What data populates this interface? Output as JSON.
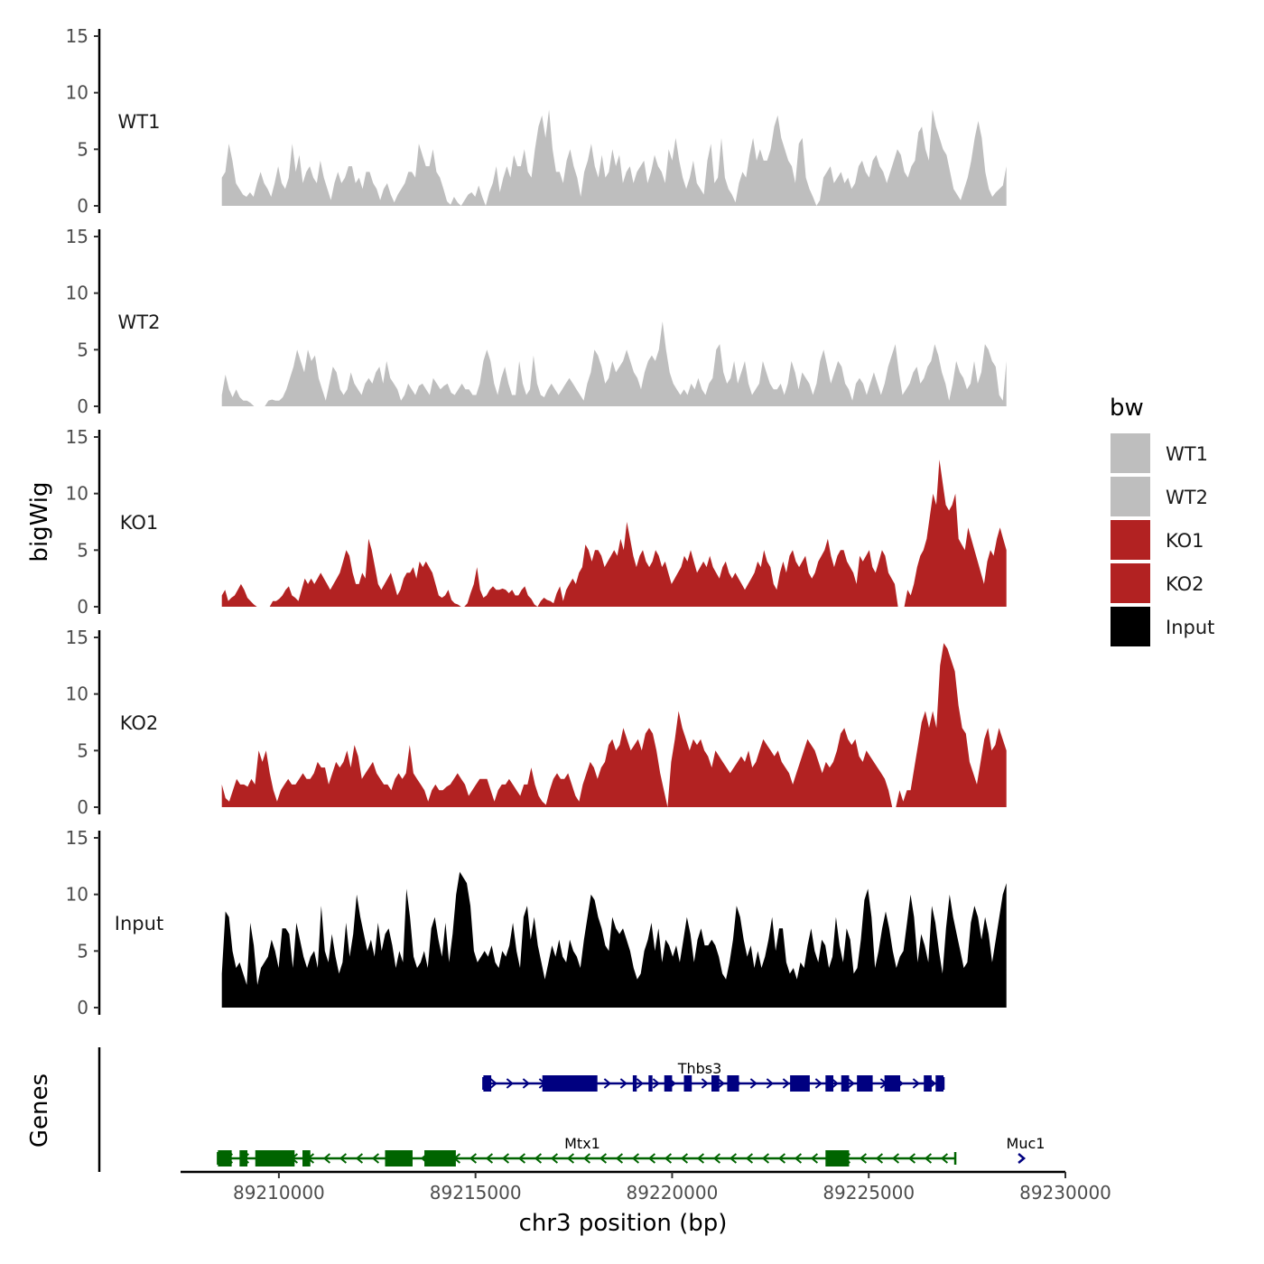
{
  "chart_data": {
    "type": "area",
    "ylabel": "bigWig",
    "xlabel": "chr3 position (bp)",
    "xlim": [
      89207500,
      89230000
    ],
    "ylim": [
      0,
      15
    ],
    "y_ticks": [
      0,
      5,
      10,
      15
    ],
    "x_ticks": [
      89210000,
      89215000,
      89220000,
      89225000,
      89230000
    ],
    "x_tick_labels": [
      "89210000",
      "89215000",
      "89220000",
      "89225000",
      "89230000"
    ],
    "genes_panel_label": "Genes",
    "legend": {
      "title": "bw",
      "placement": "right",
      "entries": [
        {
          "label": "WT1",
          "color": "#bebebe"
        },
        {
          "label": "WT2",
          "color": "#bebebe"
        },
        {
          "label": "KO1",
          "color": "#b22222"
        },
        {
          "label": "KO2",
          "color": "#b22222"
        },
        {
          "label": "Input",
          "color": "#000000"
        }
      ]
    },
    "series": [
      {
        "name": "WT1",
        "color": "#bebebe",
        "x_start": 89208550,
        "x_end": 89228500,
        "values": [
          2.5,
          3,
          5.5,
          4,
          2,
          1.5,
          1,
          0.8,
          1.2,
          0.8,
          2,
          3,
          2,
          1.5,
          0.8,
          2,
          3.5,
          2,
          1.5,
          2.5,
          5.5,
          3,
          4.5,
          2,
          3,
          3.5,
          2.5,
          2,
          4,
          2.5,
          1.5,
          0.5,
          2,
          3,
          2,
          2.5,
          3.5,
          3.5,
          2,
          2.5,
          1.5,
          3,
          3,
          2,
          1.5,
          0.5,
          1.5,
          2,
          1,
          0.3,
          1,
          1.5,
          2,
          3,
          3,
          2.5,
          5.5,
          4.5,
          3.5,
          3.5,
          5,
          3,
          2.5,
          1.5,
          0.4,
          0.1,
          0.8,
          0.3,
          0,
          0.5,
          1,
          1.2,
          0.8,
          1.8,
          0.8,
          0,
          1.2,
          2,
          3.5,
          1.2,
          2.5,
          3.5,
          2.5,
          4.5,
          3.5,
          3.5,
          5,
          3,
          2.5,
          5,
          7,
          8,
          6,
          8.5,
          5,
          3,
          3,
          2,
          4,
          5,
          3.5,
          2.5,
          0.8,
          3,
          4,
          5.5,
          3.5,
          2.5,
          4.5,
          2.5,
          3,
          5,
          3.5,
          4.5,
          2,
          3,
          3.5,
          2,
          3,
          3.5,
          4,
          2,
          3,
          4.5,
          3.5,
          3,
          2,
          5,
          4,
          6,
          4,
          2.5,
          1.5,
          2.5,
          4,
          2,
          1.5,
          1,
          4,
          5.5,
          2,
          2.5,
          6,
          2.5,
          1.5,
          1,
          0.3,
          2,
          3,
          2.5,
          4.5,
          6,
          4,
          5,
          4,
          4,
          5,
          7,
          8,
          6,
          5,
          4,
          3.5,
          2,
          5.5,
          6,
          2.5,
          1.5,
          0.8,
          0,
          0.5,
          2.5,
          3,
          3.5,
          2,
          2.5,
          3,
          2,
          2.5,
          1.5,
          2,
          3.5,
          4,
          3,
          2.5,
          4,
          4.5,
          3.5,
          3,
          2,
          3,
          4,
          5,
          4.5,
          3,
          2.5,
          3.5,
          4,
          6.5,
          7,
          5,
          4,
          8.5,
          7,
          6,
          5,
          4.5,
          3,
          1.5,
          1,
          0.5,
          1.5,
          2.5,
          4,
          6,
          7.5,
          6,
          3,
          1.5,
          0.8,
          1.2,
          1.5,
          1.8,
          3.5
        ]
      },
      {
        "name": "WT2",
        "color": "#bebebe",
        "x_start": 89208550,
        "x_end": 89228500,
        "values": [
          1,
          2.8,
          1.5,
          0.8,
          1.5,
          0.8,
          0.5,
          0.5,
          0.3,
          0,
          0,
          0,
          0,
          0.5,
          0.6,
          0.5,
          0.5,
          0.8,
          1.5,
          2.5,
          3.5,
          5,
          4,
          3,
          5,
          4,
          4.5,
          2.5,
          1.5,
          0.5,
          2,
          3.5,
          3,
          1.5,
          1,
          1.5,
          3,
          2,
          1.5,
          1,
          2,
          2.5,
          2,
          3,
          3.5,
          2,
          4,
          2.5,
          2,
          1.5,
          0.5,
          1,
          2,
          1.5,
          1,
          1.8,
          2,
          1.5,
          1,
          2.5,
          2,
          1.5,
          1.8,
          2,
          1.2,
          1,
          1.5,
          2,
          1.5,
          1.5,
          1,
          1,
          2,
          4,
          5,
          4,
          2,
          1,
          2.5,
          3.5,
          2,
          1,
          1,
          4,
          2,
          1,
          1.5,
          4.5,
          2,
          1,
          0.8,
          1.5,
          2,
          1.5,
          1,
          1.5,
          2,
          2.5,
          2,
          1.5,
          1,
          0.5,
          2,
          3,
          5,
          4.5,
          3.5,
          2,
          2.5,
          4,
          3,
          3.5,
          4,
          5,
          4,
          3,
          2.5,
          1.5,
          3,
          4,
          4.5,
          4,
          5,
          7.5,
          5,
          3,
          2,
          1.5,
          1,
          1.5,
          1,
          2,
          1.5,
          2.5,
          1.5,
          1,
          2,
          2.5,
          5,
          5.5,
          3,
          2,
          2.5,
          4,
          2,
          3,
          4,
          2,
          1,
          1.5,
          2,
          4,
          3,
          2,
          1.5,
          1.5,
          2,
          1,
          2,
          4,
          3,
          1.5,
          3,
          2.5,
          2,
          1,
          2,
          4,
          5,
          3.5,
          2,
          3,
          4,
          3.5,
          2,
          1.5,
          0.5,
          2,
          2.5,
          2,
          1,
          2,
          3,
          2,
          1,
          2,
          3.5,
          4.5,
          5.5,
          3,
          1,
          1.5,
          2,
          3,
          3.5,
          2,
          2.5,
          3.5,
          4,
          5.5,
          4.5,
          3,
          2,
          0.5,
          2,
          4,
          3,
          2.5,
          1.5,
          2,
          4,
          2,
          3,
          5.5,
          5,
          4,
          3.5,
          1,
          0.5,
          4
        ]
      },
      {
        "name": "KO1",
        "color": "#b22222",
        "x_start": 89208550,
        "x_end": 89228500,
        "values": [
          1,
          1.5,
          0.5,
          0.8,
          1,
          1.5,
          2,
          1.5,
          0.8,
          0.5,
          0.2,
          0,
          0,
          0,
          0,
          0,
          0.5,
          0.5,
          0.7,
          1,
          1.5,
          1.8,
          1,
          0.8,
          0.5,
          1.5,
          2.5,
          2,
          2.5,
          2,
          2.5,
          3,
          2.5,
          2,
          1.5,
          2,
          2.5,
          3,
          4,
          5,
          4.5,
          3,
          2,
          2,
          3,
          2.5,
          6,
          5,
          3.5,
          2,
          1.5,
          2,
          2.5,
          3,
          2,
          1,
          1.5,
          2.5,
          3,
          3,
          3.5,
          2.5,
          4,
          3.5,
          4,
          3.5,
          3,
          2,
          1,
          0.8,
          1,
          1.5,
          0.6,
          0.3,
          0.2,
          0,
          0,
          0.3,
          1.2,
          2,
          3.5,
          1.5,
          0.8,
          1,
          1.5,
          1.8,
          1.5,
          1.5,
          1.6,
          1.5,
          1.2,
          1.5,
          1,
          1,
          1.5,
          1.8,
          1,
          0.7,
          0.2,
          0,
          0.5,
          0.8,
          0.6,
          0.5,
          0.3,
          1.2,
          1.8,
          0.5,
          1.5,
          2,
          2.5,
          2,
          3,
          3.5,
          5.5,
          5,
          4,
          5,
          5,
          4.5,
          3.5,
          4,
          4.5,
          5,
          4.5,
          6,
          5,
          7.5,
          6,
          4.5,
          3.5,
          4.5,
          5,
          4,
          3.5,
          4,
          5,
          4.5,
          3.5,
          4,
          3,
          2,
          2.5,
          3,
          3.5,
          4.5,
          4,
          5,
          4,
          3,
          3.5,
          4,
          3.5,
          4.5,
          3.5,
          3,
          2.5,
          3.5,
          4,
          3,
          2.5,
          3,
          2.5,
          2,
          1.5,
          2,
          2.5,
          3,
          4,
          3.5,
          5,
          4,
          3.5,
          2,
          1.5,
          3,
          4,
          3,
          4.5,
          5,
          4,
          3.5,
          4,
          4.5,
          3,
          2.5,
          3,
          4,
          4.5,
          5,
          6,
          4.5,
          3.5,
          4.5,
          5,
          5,
          4,
          3.5,
          3,
          2,
          4.5,
          4,
          4.5,
          5,
          3.5,
          3,
          4,
          5,
          4.5,
          3,
          2.5,
          2,
          0,
          0,
          0,
          1.5,
          1,
          2,
          3.5,
          4.5,
          5,
          6,
          8,
          10,
          9,
          13,
          11,
          9,
          8.5,
          9,
          10,
          6,
          5.5,
          5,
          7,
          6,
          5,
          4,
          3,
          2,
          4,
          5,
          4.5,
          6,
          7,
          6,
          5
        ]
      },
      {
        "name": "KO2",
        "color": "#b22222",
        "x_start": 89208550,
        "x_end": 89228500,
        "values": [
          2,
          0.8,
          0.5,
          1.5,
          2.5,
          2,
          2,
          1.8,
          2.5,
          2,
          5,
          4,
          5,
          3,
          1.5,
          0.5,
          1.5,
          2,
          2.5,
          2,
          2,
          2.5,
          3,
          2.5,
          2.5,
          3,
          4,
          3.5,
          3.5,
          2,
          3,
          4,
          3.5,
          4,
          5,
          3.5,
          5.5,
          4.5,
          2.5,
          3,
          3.5,
          4,
          3,
          2.5,
          2,
          2,
          1.5,
          2.5,
          3,
          2.5,
          3,
          5.5,
          3,
          2.5,
          2,
          1.5,
          0.5,
          1.5,
          2,
          1.5,
          1.5,
          1.8,
          2,
          2.5,
          3,
          2.5,
          2,
          1,
          1.5,
          2,
          2.5,
          2.5,
          2.5,
          1.5,
          0.5,
          1.5,
          2,
          2,
          2.5,
          2,
          1.5,
          1,
          2,
          2,
          3.5,
          2,
          1,
          0.5,
          0.2,
          1.5,
          2.5,
          3,
          2.5,
          2.5,
          3,
          2,
          1,
          0.5,
          2,
          3,
          4,
          3.5,
          2.5,
          3.5,
          4,
          5.5,
          6,
          5,
          5.5,
          7,
          6,
          5,
          5.5,
          6,
          5,
          6.5,
          7,
          6.5,
          5,
          3,
          1.5,
          0,
          4,
          6,
          8.5,
          7,
          6,
          5,
          6,
          5.5,
          6,
          5,
          4.5,
          3.5,
          5,
          4.5,
          4,
          3.5,
          3,
          3.5,
          4,
          4.5,
          4,
          5,
          3.5,
          4,
          5,
          6,
          5.5,
          5,
          4.5,
          5,
          4,
          3.5,
          3,
          2,
          3,
          4,
          5,
          6,
          5.5,
          5,
          4,
          3,
          4,
          3.5,
          4,
          5,
          6.5,
          7,
          6,
          5.5,
          6,
          4.5,
          4,
          5,
          4.5,
          4,
          3.5,
          3,
          2.5,
          1.5,
          0,
          0,
          1.5,
          0.5,
          1.5,
          1.5,
          3.5,
          5.5,
          7.5,
          8.5,
          7,
          8.5,
          7,
          12.5,
          14.5,
          14,
          13,
          12,
          9,
          7,
          6.5,
          4,
          3,
          2,
          4,
          6,
          7,
          5,
          5.5,
          7,
          6,
          5
        ]
      },
      {
        "name": "Input",
        "color": "#000000",
        "x_start": 89208550,
        "x_end": 89228500,
        "values": [
          3,
          8.5,
          8,
          5,
          3.5,
          4,
          3,
          2,
          7.5,
          5.5,
          2,
          3.5,
          4,
          4.5,
          6,
          5,
          3.5,
          7,
          7,
          6.5,
          3.5,
          7.5,
          6,
          4.5,
          3.5,
          4.5,
          5,
          3.5,
          9,
          5,
          4,
          6.5,
          4.5,
          3,
          4,
          7.5,
          4.5,
          6.5,
          10,
          8,
          6.5,
          5,
          6,
          4.5,
          7.5,
          5,
          6.5,
          7,
          5.5,
          3.5,
          5,
          4,
          10.5,
          8,
          4.5,
          3.5,
          4,
          5,
          3.5,
          7,
          8,
          6,
          4.5,
          7.5,
          4,
          6.5,
          10,
          12,
          11.5,
          11,
          9,
          5,
          4,
          4.5,
          5,
          4.5,
          5.5,
          4,
          3.5,
          5,
          4.5,
          5.5,
          7.5,
          5,
          3.5,
          8,
          9,
          6,
          8,
          5.5,
          4,
          2.5,
          4,
          5.5,
          4.5,
          6,
          4.5,
          4,
          6,
          5,
          4.5,
          3.5,
          6,
          8,
          10,
          9.5,
          8,
          7,
          5.5,
          5,
          8,
          7,
          6.5,
          7,
          6,
          5,
          3.5,
          2.5,
          3,
          5,
          6,
          7.5,
          5,
          7,
          4,
          6,
          5.5,
          4.5,
          5.5,
          4,
          6,
          8,
          6.5,
          4,
          6,
          7,
          5.5,
          5.5,
          6,
          5.5,
          4.5,
          3,
          2.5,
          4,
          6,
          9,
          8,
          6,
          4.5,
          5.5,
          3.5,
          5,
          3.5,
          4.5,
          6,
          8,
          5,
          7,
          7,
          4,
          3,
          3.5,
          2.5,
          4,
          3.5,
          5.5,
          7,
          5,
          4,
          6,
          5.5,
          3.5,
          4.5,
          8,
          5.5,
          4,
          7,
          6,
          3,
          3.5,
          6,
          9.5,
          10.5,
          8,
          3.5,
          5,
          7,
          8.5,
          7,
          5,
          3.5,
          4.5,
          5,
          7.5,
          10,
          8,
          4,
          6.5,
          5.5,
          4,
          9,
          7.5,
          5,
          3,
          7,
          10,
          8,
          6.5,
          5,
          3.5,
          4,
          7.5,
          9,
          8,
          6,
          8,
          6.5,
          4,
          6,
          8,
          10,
          11
        ]
      }
    ],
    "genes": [
      {
        "name": "Thbs3",
        "strand": "+",
        "color": "#000080",
        "start": 89215200,
        "end": 89226900,
        "exons": [
          [
            89215200,
            89215400
          ],
          [
            89216700,
            89218100
          ],
          [
            89219000,
            89219100
          ],
          [
            89219400,
            89219500
          ],
          [
            89219800,
            89220000
          ],
          [
            89220300,
            89220500
          ],
          [
            89221000,
            89221200
          ],
          [
            89221400,
            89221700
          ],
          [
            89223000,
            89223500
          ],
          [
            89223900,
            89224100
          ],
          [
            89224300,
            89224500
          ],
          [
            89224700,
            89225100
          ],
          [
            89225400,
            89225800
          ],
          [
            89226400,
            89226600
          ],
          [
            89226700,
            89226900
          ]
        ]
      },
      {
        "name": "Mtx1",
        "strand": "-",
        "color": "#006400",
        "start": 89208450,
        "end": 89227200,
        "exons": [
          [
            89208450,
            89208800
          ],
          [
            89209000,
            89209200
          ],
          [
            89209400,
            89210400
          ],
          [
            89210600,
            89210800
          ],
          [
            89212700,
            89213400
          ],
          [
            89213700,
            89214500
          ],
          [
            89223900,
            89224500
          ]
        ]
      },
      {
        "name": "Muc1",
        "strand": "+",
        "color": "#000080",
        "start": 89228800,
        "end": 89229000,
        "exons": []
      }
    ]
  }
}
